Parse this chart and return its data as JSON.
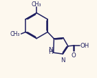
{
  "bg_color": "#fdf8ee",
  "bond_color": "#1e1e60",
  "text_color": "#1e1e60",
  "lw": 1.1,
  "fs": 6.2,
  "fig_w": 1.41,
  "fig_h": 1.14,
  "dpi": 100,
  "xlim": [
    -1.0,
    9.5
  ],
  "ylim": [
    -1.5,
    7.5
  ]
}
